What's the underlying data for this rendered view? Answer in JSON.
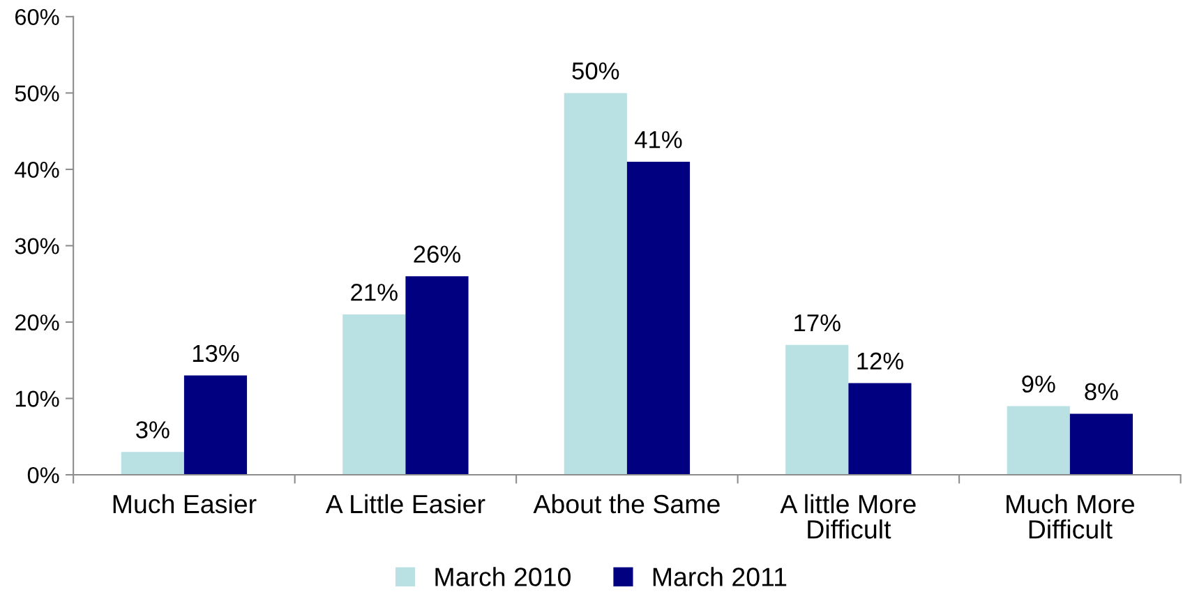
{
  "chart_data": {
    "type": "bar",
    "categories": [
      "Much Easier",
      "A Little Easier",
      "About the Same",
      "A little More Difficult",
      "Much More Difficult"
    ],
    "series": [
      {
        "name": "March 2010",
        "color": "#b9e0e3",
        "values": [
          3,
          21,
          50,
          17,
          9
        ],
        "value_labels": [
          "3%",
          "21%",
          "50%",
          "17%",
          "9%"
        ]
      },
      {
        "name": "March 2011",
        "color": "#000080",
        "values": [
          13,
          26,
          41,
          12,
          8
        ],
        "value_labels": [
          "13%",
          "26%",
          "41%",
          "12%",
          "8%"
        ]
      }
    ],
    "ylim": [
      0,
      60
    ],
    "yticks": [
      {
        "value": 0,
        "label": "0%"
      },
      {
        "value": 10,
        "label": "10%"
      },
      {
        "value": 20,
        "label": "20%"
      },
      {
        "value": 30,
        "label": "30%"
      },
      {
        "value": 40,
        "label": "40%"
      },
      {
        "value": 50,
        "label": "50%"
      },
      {
        "value": 60,
        "label": "60%"
      }
    ],
    "legend": "bottom"
  }
}
